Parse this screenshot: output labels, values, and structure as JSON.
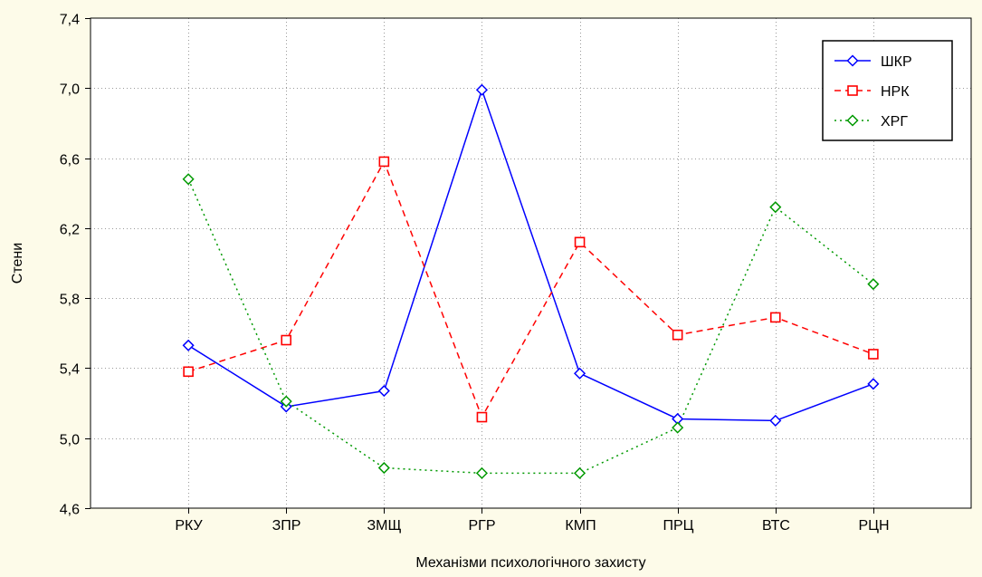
{
  "colors": {
    "background": "#fdfbe9",
    "plot_area": "#ffffff",
    "grid": "#9a9a9a",
    "axis": "#000000"
  },
  "chart_data": {
    "type": "line",
    "title": "",
    "xlabel": "Механізми психологічного захисту",
    "ylabel": "Стени",
    "categories": [
      "РКУ",
      "ЗПР",
      "ЗМЩ",
      "РГР",
      "КМП",
      "ПРЦ",
      "ВТС",
      "РЦН"
    ],
    "ylim": [
      4.6,
      7.4
    ],
    "yticks": [
      4.6,
      5.0,
      5.4,
      5.8,
      6.2,
      6.6,
      7.0,
      7.4
    ],
    "ytick_labels": [
      "4,6",
      "5,0",
      "5,4",
      "5,8",
      "6,2",
      "6,6",
      "7,0",
      "7,4"
    ],
    "grid": true,
    "legend_position": "top-right",
    "series": [
      {
        "name": "ШКР",
        "color": "#0000ff",
        "line_style": "solid",
        "marker": "diamond",
        "values": [
          5.53,
          5.18,
          5.27,
          6.99,
          5.37,
          5.11,
          5.1,
          5.31
        ]
      },
      {
        "name": "НРК",
        "color": "#ff0000",
        "line_style": "dashed",
        "marker": "square",
        "values": [
          5.38,
          5.56,
          6.58,
          5.12,
          6.12,
          5.59,
          5.69,
          5.48
        ]
      },
      {
        "name": "ХРГ",
        "color": "#009900",
        "line_style": "dotted",
        "marker": "diamond",
        "values": [
          6.48,
          5.21,
          4.83,
          4.8,
          4.8,
          5.06,
          6.32,
          5.88
        ]
      }
    ]
  }
}
